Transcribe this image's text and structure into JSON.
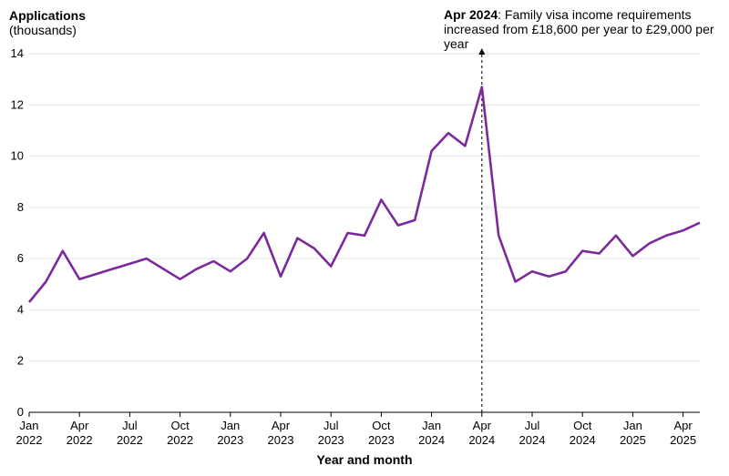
{
  "chart_data": {
    "type": "line",
    "ylabel": "Applications",
    "ylabel_unit": "(thousands)",
    "xlabel": "Year and month",
    "ylim": [
      0,
      14
    ],
    "yticks": [
      "0",
      "2",
      "4",
      "6",
      "8",
      "10",
      "12",
      "14"
    ],
    "grid": true,
    "line_color": "#7b2a9e",
    "annotation": {
      "date": "2024-04",
      "bold": "Apr 2024",
      "text": ": Family visa income requirements increased from £18,600 per year to £29,000 per year"
    },
    "xticks": [
      {
        "date": "2022-01",
        "month": "Jan",
        "year": "2022"
      },
      {
        "date": "2022-04",
        "month": "Apr",
        "year": "2022"
      },
      {
        "date": "2022-07",
        "month": "Jul",
        "year": "2022"
      },
      {
        "date": "2022-10",
        "month": "Oct",
        "year": "2022"
      },
      {
        "date": "2023-01",
        "month": "Jan",
        "year": "2023"
      },
      {
        "date": "2023-04",
        "month": "Apr",
        "year": "2023"
      },
      {
        "date": "2023-07",
        "month": "Jul",
        "year": "2023"
      },
      {
        "date": "2023-10",
        "month": "Oct",
        "year": "2023"
      },
      {
        "date": "2024-01",
        "month": "Jan",
        "year": "2024"
      },
      {
        "date": "2024-04",
        "month": "Apr",
        "year": "2024"
      },
      {
        "date": "2024-07",
        "month": "Jul",
        "year": "2024"
      },
      {
        "date": "2024-10",
        "month": "Oct",
        "year": "2024"
      },
      {
        "date": "2025-01",
        "month": "Jan",
        "year": "2025"
      },
      {
        "date": "2025-04",
        "month": "Apr",
        "year": "2025"
      }
    ],
    "series": [
      {
        "x": [
          "2022-01",
          "2022-02",
          "2022-03",
          "2022-04",
          "2022-08",
          "2022-10",
          "2022-11",
          "2022-12",
          "2023-01",
          "2023-02",
          "2023-03",
          "2023-04",
          "2023-05",
          "2023-06",
          "2023-07",
          "2023-08",
          "2023-09",
          "2023-10",
          "2023-11",
          "2023-12",
          "2024-01",
          "2024-02",
          "2024-03",
          "2024-04",
          "2024-05",
          "2024-06",
          "2024-07",
          "2024-08",
          "2024-09",
          "2024-10",
          "2024-11",
          "2024-12",
          "2025-01",
          "2025-02",
          "2025-03",
          "2025-04",
          "2025-05"
        ],
        "values": [
          4.3,
          5.1,
          6.3,
          5.2,
          6.0,
          5.2,
          5.6,
          5.9,
          5.5,
          6.0,
          7.0,
          5.3,
          6.8,
          6.4,
          5.7,
          7.0,
          6.9,
          8.3,
          7.3,
          7.5,
          10.2,
          10.9,
          10.4,
          12.7,
          6.9,
          5.1,
          5.5,
          5.3,
          5.5,
          6.3,
          6.2,
          6.9,
          6.1,
          6.6,
          6.9,
          7.1,
          7.4
        ]
      }
    ]
  }
}
